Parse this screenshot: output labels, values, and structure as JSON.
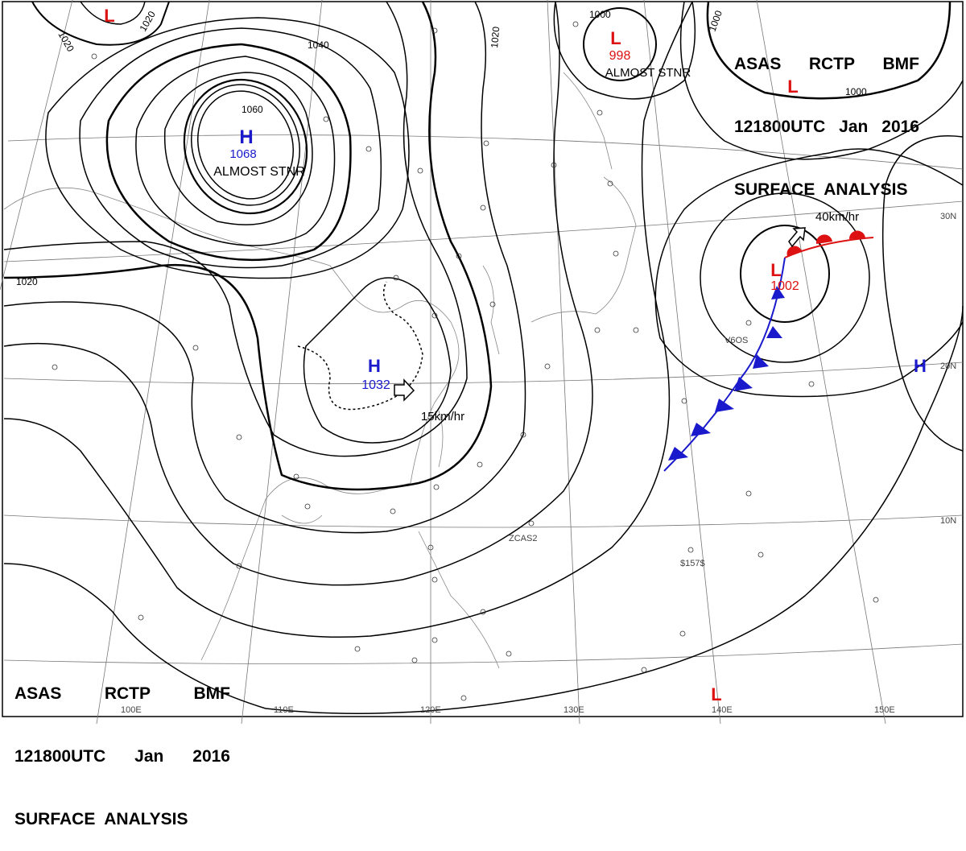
{
  "header_top_right": {
    "line1": [
      "ASAS",
      "RCTP",
      "BMF"
    ],
    "line2": [
      "121800UTC",
      "Jan",
      "2016"
    ],
    "line3": "SURFACE  ANALYSIS"
  },
  "header_bottom_left": {
    "line1": [
      "ASAS",
      "RCTP",
      "BMF"
    ],
    "line2": [
      "121800UTC",
      "Jan",
      "2016"
    ],
    "line3": "SURFACE  ANALYSIS"
  },
  "pressure_centers": [
    {
      "type": "H",
      "value": "1068",
      "color": "#1a1acc",
      "note": "ALMOST STNR"
    },
    {
      "type": "H",
      "value": "1032",
      "color": "#1a1acc",
      "motion": "15km/hr"
    },
    {
      "type": "L",
      "value": "998",
      "color": "#dd1111",
      "note": "ALMOST STNR"
    },
    {
      "type": "L",
      "value": "1002",
      "color": "#dd1111",
      "motion": "40km/hr"
    },
    {
      "type": "H",
      "value": "",
      "color": "#1a1acc"
    },
    {
      "type": "L",
      "value": "",
      "color": "#dd1111"
    },
    {
      "type": "L",
      "value": "",
      "color": "#dd1111"
    },
    {
      "type": "L",
      "value": "",
      "color": "#dd1111"
    }
  ],
  "isobar_labels": [
    "1020",
    "1020",
    "1040",
    "1060",
    "1020",
    "1020",
    "1000",
    "1000",
    "1000"
  ],
  "longitude_labels": [
    "100E",
    "110E",
    "120E",
    "130E",
    "140E",
    "150E"
  ],
  "latitude_labels": [
    "30N",
    "20N",
    "10N"
  ],
  "station_labels": [
    "ZCAS2",
    "V6OS",
    "$157$"
  ],
  "colors": {
    "high": "#1a1acc",
    "low": "#dd1111",
    "cold_front": "#1a1acc",
    "warm_front": "#dd1111",
    "lines": "#000000"
  }
}
